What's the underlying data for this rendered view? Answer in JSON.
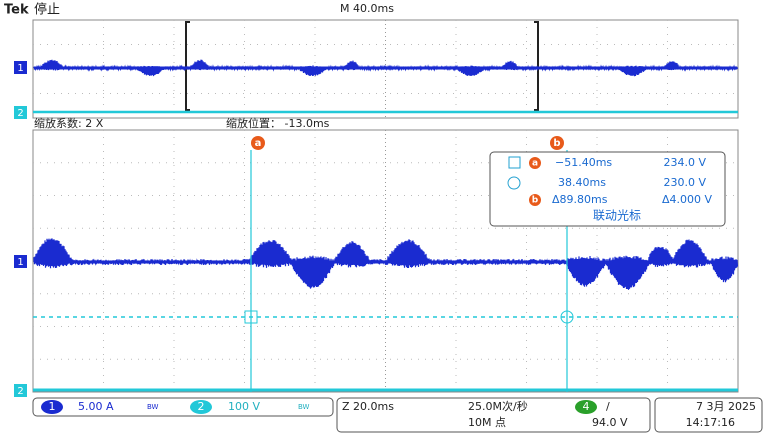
{
  "header": {
    "brand": "Tek",
    "status": "停止",
    "timebase": "M 40.0ms"
  },
  "zoom": {
    "factor": "缩放系数: 2 X",
    "position": "缩放位置： -13.0ms"
  },
  "markers": {
    "ch1": "1",
    "ch2": "2",
    "cursor_a": "a",
    "cursor_b": "b"
  },
  "readout": {
    "rows": [
      {
        "time": "−51.40ms",
        "value": "234.0 V"
      },
      {
        "time": "38.40ms",
        "value": "230.0 V"
      },
      {
        "time": "Δ89.80ms",
        "value": "Δ4.000 V"
      }
    ],
    "mode": "联动光标"
  },
  "status_bar": {
    "ch1": {
      "label": "1",
      "scale": "5.00 A",
      "bandwidth": "BW"
    },
    "ch2": {
      "label": "2",
      "scale": "100 V",
      "bandwidth": "BW"
    },
    "zoom_timebase": "Z 20.0ms",
    "sample_rate": "25.0M次/秒",
    "record_length": "10M 点",
    "trigger": {
      "source": "4",
      "slope": "/",
      "level": "94.0 V"
    },
    "date": "7 3月 2025",
    "time": "14:17:16"
  }
}
